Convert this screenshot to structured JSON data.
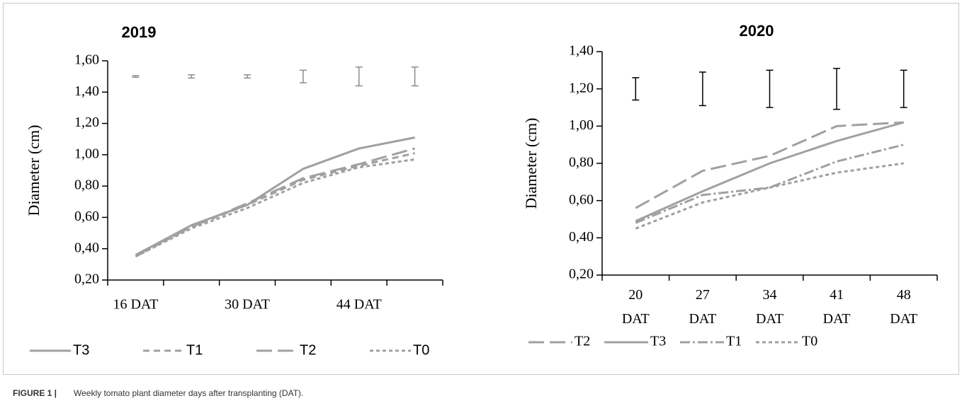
{
  "chart_data": [
    {
      "type": "line",
      "title": "2019",
      "ylabel": "Diameter (cm)",
      "categories": [
        "16 DAT",
        null,
        "30 DAT",
        null,
        "44 DAT",
        null
      ],
      "series": [
        {
          "name": "T3",
          "color": "#a0a0a0",
          "dash": "solid",
          "values": [
            0.36,
            0.55,
            0.68,
            0.91,
            1.04,
            1.11
          ]
        },
        {
          "name": "T1",
          "color": "#a0a0a0",
          "dash": "dashed",
          "values": [
            0.35,
            0.54,
            0.68,
            0.84,
            0.93,
            1.01
          ]
        },
        {
          "name": "T2",
          "color": "#a0a0a0",
          "dash": "long-dash",
          "values": [
            0.36,
            0.54,
            0.69,
            0.85,
            0.94,
            1.04
          ]
        },
        {
          "name": "T0",
          "color": "#a0a0a0",
          "dash": "dotted",
          "values": [
            0.35,
            0.53,
            0.66,
            0.82,
            0.92,
            0.97
          ]
        }
      ],
      "error_bars": {
        "color": "#8c8c8c",
        "values": [
          1.5,
          1.5,
          1.5,
          1.5,
          1.5,
          1.5
        ],
        "errors": [
          0.005,
          0.01,
          0.01,
          0.04,
          0.06,
          0.06
        ]
      },
      "ylim": [
        0.2,
        1.6
      ],
      "yticks": [
        {
          "value": 0.2,
          "label": "0,20"
        },
        {
          "value": 0.4,
          "label": "0,40"
        },
        {
          "value": 0.6,
          "label": "0,60"
        },
        {
          "value": 0.8,
          "label": "0,80"
        },
        {
          "value": 1.0,
          "label": "1,00"
        },
        {
          "value": 1.2,
          "label": "1,20"
        },
        {
          "value": 1.4,
          "label": "1,40"
        },
        {
          "value": 1.6,
          "label": "1,60"
        }
      ],
      "grid": false,
      "legend": "bottom"
    },
    {
      "type": "line",
      "title": "2020",
      "ylabel": "Diameter (cm)",
      "categories": [
        "20 DAT",
        "27 DAT",
        "34 DAT",
        "41 DAT",
        "48 DAT"
      ],
      "series": [
        {
          "name": "T2",
          "color": "#a0a0a0",
          "dash": "long-dash",
          "values": [
            0.56,
            0.76,
            0.84,
            1.0,
            1.02
          ]
        },
        {
          "name": "T3",
          "color": "#a0a0a0",
          "dash": "solid",
          "values": [
            0.49,
            0.65,
            0.8,
            0.92,
            1.02
          ]
        },
        {
          "name": "T1",
          "color": "#a0a0a0",
          "dash": "dash-dot",
          "values": [
            0.48,
            0.63,
            0.67,
            0.81,
            0.9
          ]
        },
        {
          "name": "T0",
          "color": "#a0a0a0",
          "dash": "dotted",
          "values": [
            0.45,
            0.59,
            0.67,
            0.75,
            0.8
          ]
        }
      ],
      "error_bars": {
        "color": "#000000",
        "values": [
          1.2,
          1.2,
          1.2,
          1.2,
          1.2
        ],
        "errors": [
          0.06,
          0.09,
          0.1,
          0.11,
          0.1
        ]
      },
      "ylim": [
        0.2,
        1.4
      ],
      "yticks": [
        {
          "value": 0.2,
          "label": "0,20"
        },
        {
          "value": 0.4,
          "label": "0,40"
        },
        {
          "value": 0.6,
          "label": "0,60"
        },
        {
          "value": 0.8,
          "label": "0,80"
        },
        {
          "value": 1.0,
          "label": "1,00"
        },
        {
          "value": 1.2,
          "label": "1,20"
        },
        {
          "value": 1.4,
          "label": "1,40"
        }
      ],
      "grid": false,
      "legend": "bottom"
    }
  ],
  "caption": {
    "label": "FIGURE 1 |",
    "text": "Weekly tomato plant diameter days after transplanting (DAT)."
  }
}
